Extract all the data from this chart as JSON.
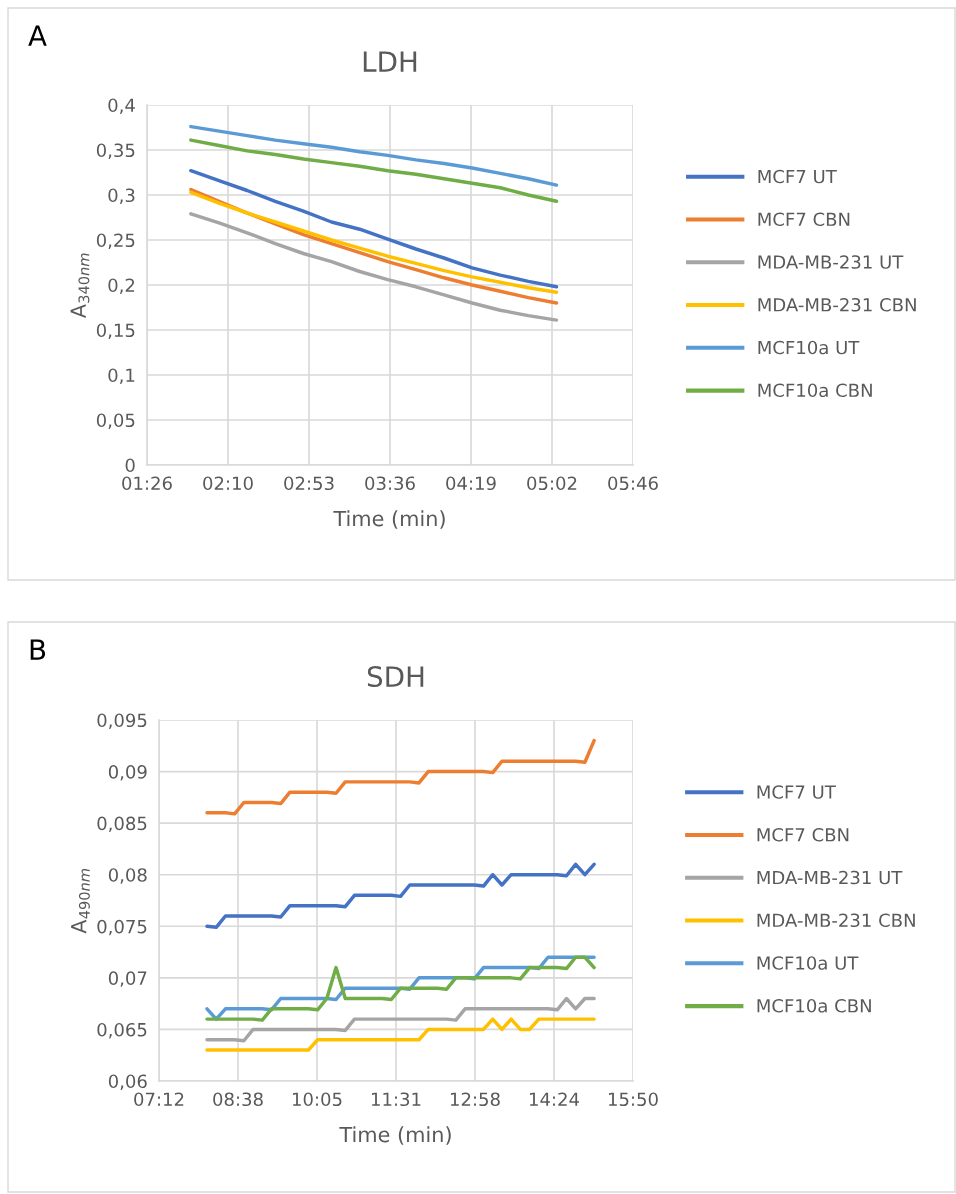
{
  "chart_data": [
    {
      "type": "line",
      "title": "LDH",
      "xlabel": "Time (min)",
      "ylabel": "A$_{340nm}$",
      "annotations": [
        "A"
      ],
      "legend": "right",
      "grid": true,
      "x": [
        1.83,
        2.08,
        2.33,
        2.58,
        2.83,
        3.08,
        3.33,
        3.58,
        3.83,
        4.08,
        4.33,
        4.58,
        4.83,
        5.08
      ],
      "xlim": [
        1.44,
        5.76
      ],
      "xticks": [
        {
          "value": 1.44,
          "label": "01:26"
        },
        {
          "value": 2.16,
          "label": "02:10"
        },
        {
          "value": 2.88,
          "label": "02:53"
        },
        {
          "value": 3.6,
          "label": "03:36"
        },
        {
          "value": 4.32,
          "label": "04:19"
        },
        {
          "value": 5.04,
          "label": "05:02"
        },
        {
          "value": 5.76,
          "label": "05:46"
        }
      ],
      "ylim": [
        0,
        0.4
      ],
      "yticks": [
        {
          "value": 0,
          "label": "0"
        },
        {
          "value": 0.05,
          "label": "0,05"
        },
        {
          "value": 0.1,
          "label": "0,1"
        },
        {
          "value": 0.15,
          "label": "0,15"
        },
        {
          "value": 0.2,
          "label": "0,2"
        },
        {
          "value": 0.25,
          "label": "0,25"
        },
        {
          "value": 0.3,
          "label": "0,3"
        },
        {
          "value": 0.35,
          "label": "0,35"
        },
        {
          "value": 0.4,
          "label": "0,4"
        }
      ],
      "series": [
        {
          "name": "MCF7 UT",
          "color": "#4472c4",
          "values": [
            0.327,
            0.316,
            0.305,
            0.293,
            0.282,
            0.27,
            0.262,
            0.251,
            0.24,
            0.23,
            0.219,
            0.211,
            0.204,
            0.198
          ]
        },
        {
          "name": "MCF7 CBN",
          "color": "#ed7d31",
          "values": [
            0.306,
            0.293,
            0.28,
            0.268,
            0.256,
            0.246,
            0.236,
            0.226,
            0.217,
            0.208,
            0.2,
            0.193,
            0.186,
            0.18
          ]
        },
        {
          "name": "MDA-MB-231 UT",
          "color": "#a5a5a5",
          "values": [
            0.279,
            0.269,
            0.258,
            0.246,
            0.235,
            0.226,
            0.215,
            0.206,
            0.198,
            0.189,
            0.18,
            0.172,
            0.166,
            0.161
          ]
        },
        {
          "name": "MDA-MB-231 CBN",
          "color": "#ffc000",
          "values": [
            0.303,
            0.291,
            0.28,
            0.27,
            0.26,
            0.25,
            0.241,
            0.232,
            0.224,
            0.216,
            0.209,
            0.203,
            0.197,
            0.192
          ]
        },
        {
          "name": "MCF10a UT",
          "color": "#5b9bd5",
          "values": [
            0.376,
            0.371,
            0.366,
            0.361,
            0.357,
            0.353,
            0.348,
            0.344,
            0.339,
            0.335,
            0.33,
            0.324,
            0.318,
            0.311
          ]
        },
        {
          "name": "MCF10a CBN",
          "color": "#70ad47",
          "values": [
            0.361,
            0.355,
            0.349,
            0.345,
            0.34,
            0.336,
            0.332,
            0.327,
            0.323,
            0.318,
            0.313,
            0.308,
            0.3,
            0.293
          ]
        }
      ]
    },
    {
      "type": "line",
      "title": "SDH",
      "xlabel": "Time (min)",
      "ylabel": "A$_{490nm}$",
      "annotations": [
        "B"
      ],
      "legend": "right",
      "grid": true,
      "x": [
        8.075,
        8.243,
        8.411,
        8.579,
        8.747,
        8.915,
        9.083,
        9.251,
        9.419,
        9.587,
        9.755,
        9.923,
        10.091,
        10.259,
        10.427,
        10.595,
        10.763,
        10.931,
        11.099,
        11.267,
        11.435,
        11.603,
        11.771,
        11.939,
        12.107,
        12.275,
        12.443,
        12.611,
        12.779,
        12.947,
        13.115,
        13.283,
        13.451,
        13.619,
        13.787,
        13.955,
        14.123,
        14.291,
        14.459,
        14.627,
        14.795,
        14.963,
        15.131
      ],
      "xlim": [
        7.2,
        15.84
      ],
      "xticks": [
        {
          "value": 7.2,
          "label": "07:12"
        },
        {
          "value": 8.64,
          "label": "08:38"
        },
        {
          "value": 10.08,
          "label": "10:05"
        },
        {
          "value": 11.52,
          "label": "11:31"
        },
        {
          "value": 12.96,
          "label": "12:58"
        },
        {
          "value": 14.4,
          "label": "14:24"
        },
        {
          "value": 15.84,
          "label": "15:50"
        }
      ],
      "ylim": [
        0.06,
        0.095
      ],
      "yticks": [
        {
          "value": 0.06,
          "label": "0,06"
        },
        {
          "value": 0.065,
          "label": "0,065"
        },
        {
          "value": 0.07,
          "label": "0,07"
        },
        {
          "value": 0.075,
          "label": "0,075"
        },
        {
          "value": 0.08,
          "label": "0,08"
        },
        {
          "value": 0.085,
          "label": "0,085"
        },
        {
          "value": 0.09,
          "label": "0,09"
        },
        {
          "value": 0.095,
          "label": "0,095"
        }
      ],
      "series": [
        {
          "name": "MCF7 UT",
          "color": "#4472c4",
          "values": [
            0.075,
            0.0749,
            0.076,
            0.076,
            0.076,
            0.076,
            0.076,
            0.076,
            0.0759,
            0.077,
            0.077,
            0.077,
            0.077,
            0.077,
            0.077,
            0.0769,
            0.078,
            0.078,
            0.078,
            0.078,
            0.078,
            0.0779,
            0.079,
            0.079,
            0.079,
            0.079,
            0.079,
            0.079,
            0.079,
            0.079,
            0.0789,
            0.08,
            0.079,
            0.08,
            0.08,
            0.08,
            0.08,
            0.08,
            0.08,
            0.0799,
            0.081,
            0.08,
            0.081
          ]
        },
        {
          "name": "MCF7 CBN",
          "color": "#ed7d31",
          "values": [
            0.086,
            0.086,
            0.086,
            0.0859,
            0.087,
            0.087,
            0.087,
            0.087,
            0.0869,
            0.088,
            0.088,
            0.088,
            0.088,
            0.088,
            0.0879,
            0.089,
            0.089,
            0.089,
            0.089,
            0.089,
            0.089,
            0.089,
            0.089,
            0.0889,
            0.09,
            0.09,
            0.09,
            0.09,
            0.09,
            0.09,
            0.09,
            0.0899,
            0.091,
            0.091,
            0.091,
            0.091,
            0.091,
            0.091,
            0.091,
            0.091,
            0.091,
            0.0909,
            0.093
          ]
        },
        {
          "name": "MDA-MB-231 UT",
          "color": "#a5a5a5",
          "values": [
            0.064,
            0.064,
            0.064,
            0.064,
            0.0639,
            0.065,
            0.065,
            0.065,
            0.065,
            0.065,
            0.065,
            0.065,
            0.065,
            0.065,
            0.065,
            0.0649,
            0.066,
            0.066,
            0.066,
            0.066,
            0.066,
            0.066,
            0.066,
            0.066,
            0.066,
            0.066,
            0.066,
            0.0659,
            0.067,
            0.067,
            0.067,
            0.067,
            0.067,
            0.067,
            0.067,
            0.067,
            0.067,
            0.067,
            0.0669,
            0.068,
            0.067,
            0.068,
            0.068
          ]
        },
        {
          "name": "MDA-MB-231 CBN",
          "color": "#ffc000",
          "values": [
            0.063,
            0.063,
            0.063,
            0.063,
            0.063,
            0.063,
            0.063,
            0.063,
            0.063,
            0.063,
            0.063,
            0.063,
            0.064,
            0.064,
            0.064,
            0.064,
            0.064,
            0.064,
            0.064,
            0.064,
            0.064,
            0.064,
            0.064,
            0.064,
            0.065,
            0.065,
            0.065,
            0.065,
            0.065,
            0.065,
            0.065,
            0.066,
            0.065,
            0.066,
            0.065,
            0.065,
            0.066,
            0.066,
            0.066,
            0.066,
            0.066,
            0.066,
            0.066
          ]
        },
        {
          "name": "MCF10a UT",
          "color": "#5b9bd5",
          "values": [
            0.067,
            0.066,
            0.067,
            0.067,
            0.067,
            0.067,
            0.067,
            0.0669,
            0.068,
            0.068,
            0.068,
            0.068,
            0.068,
            0.068,
            0.0679,
            0.069,
            0.069,
            0.069,
            0.069,
            0.069,
            0.069,
            0.069,
            0.0689,
            0.07,
            0.07,
            0.07,
            0.07,
            0.07,
            0.07,
            0.0699,
            0.071,
            0.071,
            0.071,
            0.071,
            0.071,
            0.071,
            0.0709,
            0.072,
            0.072,
            0.072,
            0.072,
            0.072,
            0.072
          ]
        },
        {
          "name": "MCF10a CBN",
          "color": "#70ad47",
          "values": [
            0.066,
            0.066,
            0.066,
            0.066,
            0.066,
            0.066,
            0.0659,
            0.067,
            0.067,
            0.067,
            0.067,
            0.067,
            0.0669,
            0.068,
            0.071,
            0.068,
            0.068,
            0.068,
            0.068,
            0.068,
            0.0679,
            0.069,
            0.069,
            0.069,
            0.069,
            0.069,
            0.0689,
            0.07,
            0.07,
            0.07,
            0.07,
            0.07,
            0.07,
            0.07,
            0.0699,
            0.071,
            0.071,
            0.071,
            0.071,
            0.0709,
            0.072,
            0.072,
            0.071
          ]
        }
      ]
    }
  ]
}
